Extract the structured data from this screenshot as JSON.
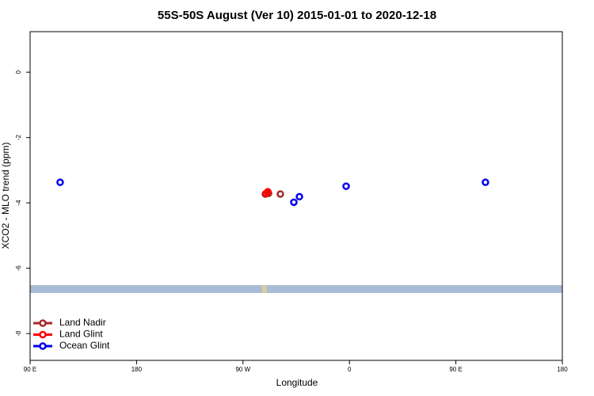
{
  "chart_data": {
    "type": "scatter",
    "title": "55S-50S August (Ver 10)   2015-01-01 to 2020-12-18",
    "x_label": "Longitude",
    "y_label": "XCO2 - MLO trend (ppm)",
    "xlim": [
      90,
      540
    ],
    "xticks": [
      {
        "value": 90,
        "label": "90 E"
      },
      180,
      {
        "value": 270,
        "label": "90 W"
      },
      {
        "value": 360,
        "label": "0"
      },
      {
        "value": 450,
        "label": "90 E"
      },
      {
        "value": 540,
        "label": "180"
      }
    ],
    "ylim": [
      -8.82,
      1.24
    ],
    "yticks": [
      0,
      -2,
      -4,
      -6,
      -8
    ],
    "legend": "bottom-left",
    "series": [
      {
        "name": "Land Nadir",
        "color": "#a52a2a",
        "x": [
          288.9,
          291.6,
          301.6
        ],
        "values": [
          -3.73,
          -3.71,
          -3.73
        ]
      },
      {
        "name": "Land Glint",
        "color": "#ff0000",
        "x": [
          289.6,
          291.0
        ],
        "values": [
          -3.71,
          -3.66
        ]
      },
      {
        "name": "Ocean Glint",
        "color": "#0000ee",
        "x": [
          115.4,
          313.0,
          317.7,
          357.2,
          475.0
        ],
        "values": [
          -3.37,
          -3.98,
          -3.81,
          -3.49,
          -3.37
        ]
      }
    ]
  }
}
